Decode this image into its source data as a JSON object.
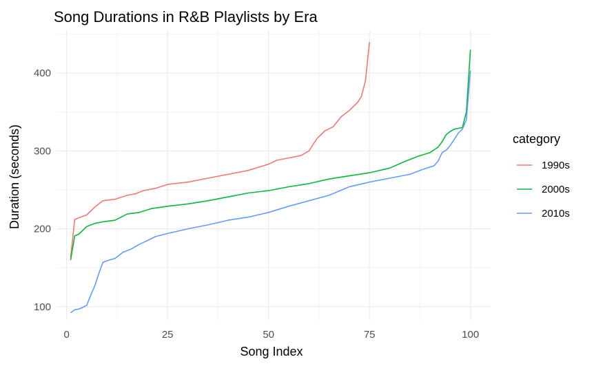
{
  "chart_data": {
    "type": "line",
    "title": "Song Durations in R&B Playlists by Era",
    "xlabel": "Song Index",
    "ylabel": "Duration (seconds)",
    "xlim": [
      -2.5,
      105
    ],
    "ylim": [
      83,
      455
    ],
    "xticks": [
      0,
      25,
      50,
      75,
      100
    ],
    "yticks": [
      100,
      200,
      300,
      400
    ],
    "grid": true,
    "legend": {
      "title": "category",
      "position": "right"
    },
    "series": [
      {
        "name": "1990s",
        "color": "#F8766D",
        "points": [
          [
            1,
            163
          ],
          [
            2,
            212
          ],
          [
            3,
            214
          ],
          [
            5,
            218
          ],
          [
            7,
            228
          ],
          [
            9,
            236
          ],
          [
            12,
            238
          ],
          [
            15,
            243
          ],
          [
            17,
            245
          ],
          [
            19,
            249
          ],
          [
            22,
            252
          ],
          [
            25,
            257
          ],
          [
            30,
            260
          ],
          [
            35,
            265
          ],
          [
            40,
            270
          ],
          [
            45,
            275
          ],
          [
            50,
            283
          ],
          [
            52,
            288
          ],
          [
            55,
            291
          ],
          [
            58,
            294
          ],
          [
            60,
            300
          ],
          [
            62,
            316
          ],
          [
            64,
            326
          ],
          [
            66,
            331
          ],
          [
            68,
            344
          ],
          [
            70,
            352
          ],
          [
            72,
            362
          ],
          [
            73,
            370
          ],
          [
            74,
            390
          ],
          [
            75,
            440
          ]
        ]
      },
      {
        "name": "2000s",
        "color": "#00BA38",
        "points": [
          [
            1,
            160
          ],
          [
            2,
            191
          ],
          [
            3,
            193
          ],
          [
            5,
            203
          ],
          [
            7,
            207
          ],
          [
            9,
            209
          ],
          [
            12,
            211
          ],
          [
            15,
            219
          ],
          [
            18,
            221
          ],
          [
            21,
            226
          ],
          [
            25,
            229
          ],
          [
            30,
            232
          ],
          [
            35,
            236
          ],
          [
            40,
            241
          ],
          [
            45,
            246
          ],
          [
            50,
            249
          ],
          [
            55,
            254
          ],
          [
            60,
            258
          ],
          [
            65,
            264
          ],
          [
            70,
            268
          ],
          [
            75,
            272
          ],
          [
            80,
            278
          ],
          [
            84,
            287
          ],
          [
            87,
            293
          ],
          [
            90,
            298
          ],
          [
            92,
            305
          ],
          [
            93,
            312
          ],
          [
            94,
            321
          ],
          [
            95,
            325
          ],
          [
            96,
            328
          ],
          [
            97,
            329
          ],
          [
            98,
            330
          ],
          [
            99,
            350
          ],
          [
            100,
            430
          ]
        ]
      },
      {
        "name": "2010s",
        "color": "#619CFF",
        "points": [
          [
            1,
            92
          ],
          [
            2,
            96
          ],
          [
            3,
            97
          ],
          [
            4,
            99
          ],
          [
            5,
            102
          ],
          [
            6,
            115
          ],
          [
            7,
            127
          ],
          [
            8,
            143
          ],
          [
            9,
            157
          ],
          [
            10,
            159
          ],
          [
            12,
            162
          ],
          [
            14,
            170
          ],
          [
            16,
            174
          ],
          [
            18,
            180
          ],
          [
            20,
            185
          ],
          [
            22,
            190
          ],
          [
            25,
            194
          ],
          [
            30,
            200
          ],
          [
            35,
            205
          ],
          [
            40,
            211
          ],
          [
            45,
            215
          ],
          [
            50,
            221
          ],
          [
            55,
            229
          ],
          [
            60,
            236
          ],
          [
            65,
            243
          ],
          [
            70,
            254
          ],
          [
            75,
            260
          ],
          [
            80,
            265
          ],
          [
            85,
            270
          ],
          [
            88,
            276
          ],
          [
            91,
            281
          ],
          [
            92,
            287
          ],
          [
            93,
            298
          ],
          [
            94,
            301
          ],
          [
            95,
            307
          ],
          [
            96,
            315
          ],
          [
            97,
            323
          ],
          [
            98,
            328
          ],
          [
            99,
            340
          ],
          [
            100,
            403
          ]
        ]
      }
    ]
  }
}
